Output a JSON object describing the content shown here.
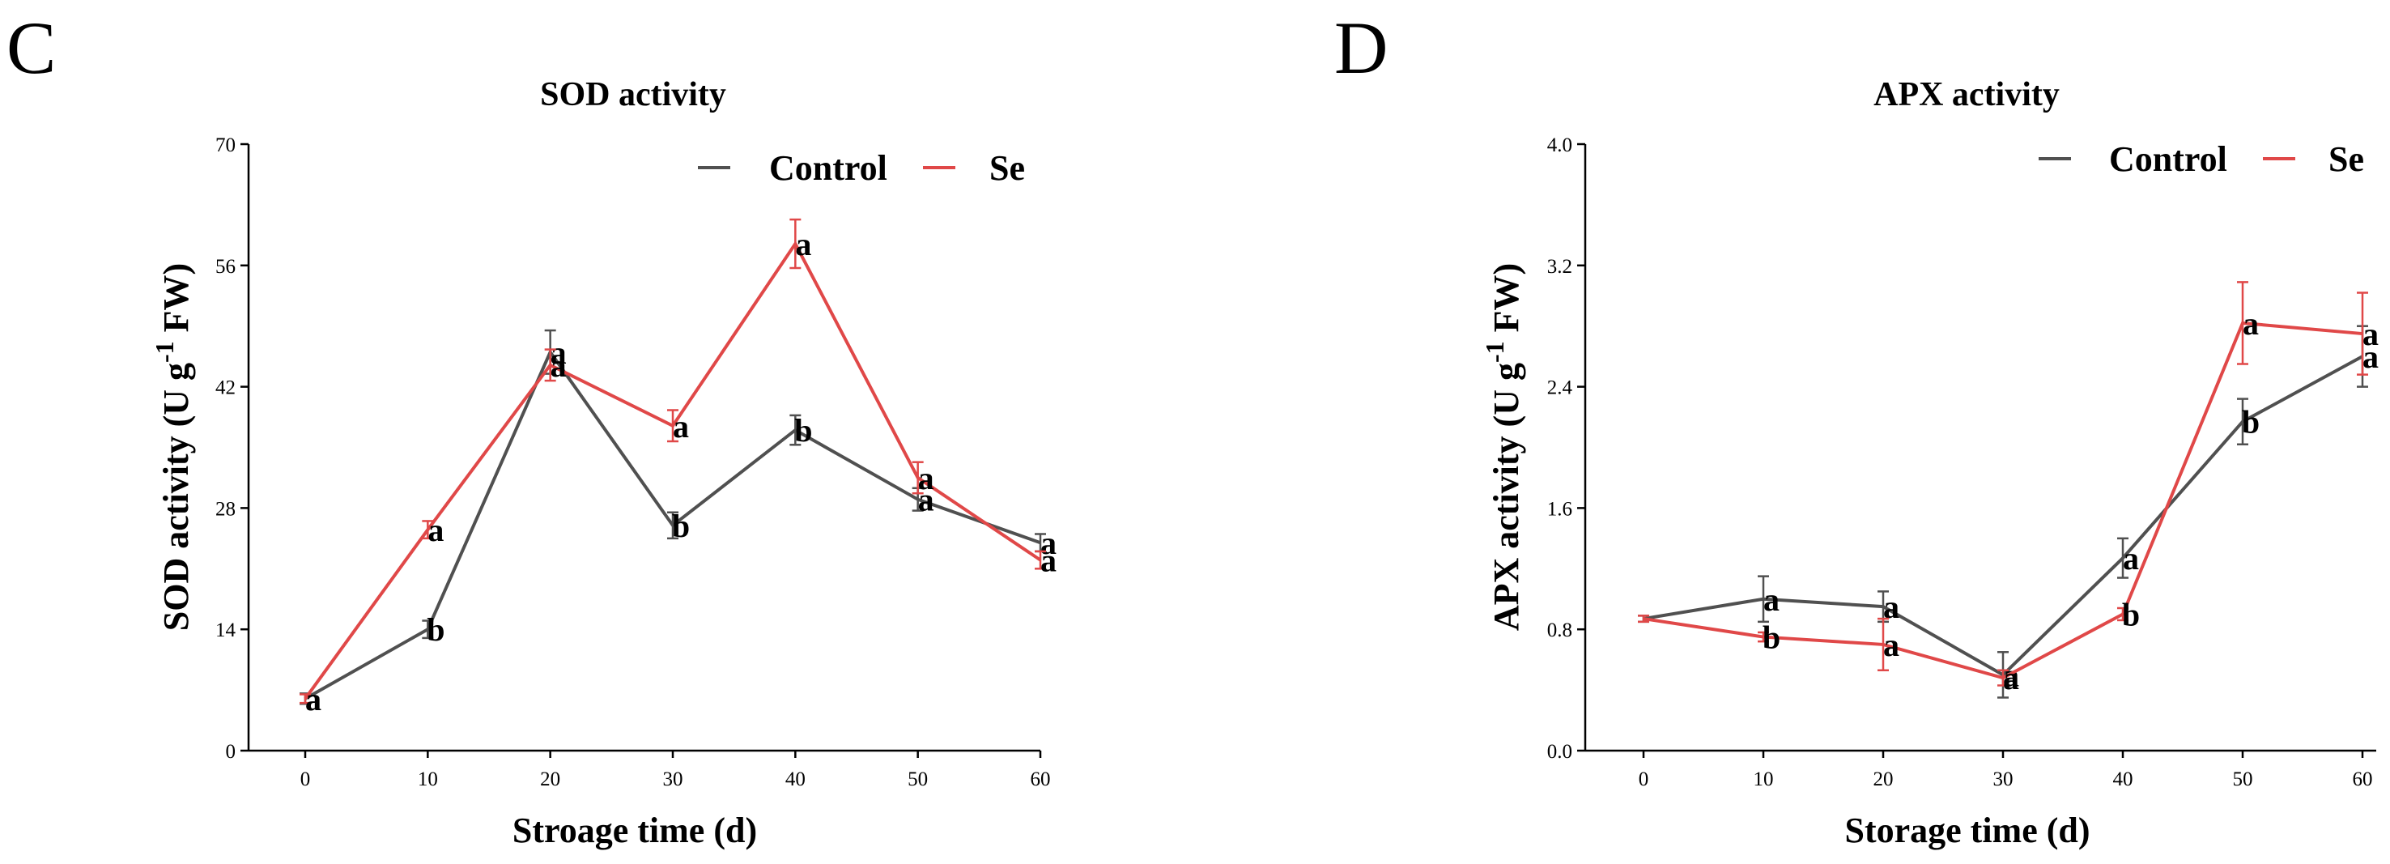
{
  "chart_data": [
    {
      "type": "line",
      "panel": "C",
      "title": "SOD activity",
      "xlabel": "Stroage time (d)",
      "ylabel": "SOD activity (U g",
      "ylabel_sup": "-1",
      "ylabel_tail": " FW)",
      "x": [
        0,
        10,
        20,
        30,
        40,
        50,
        60
      ],
      "xticks": [
        "0",
        "10",
        "20",
        "30",
        "40",
        "50",
        "60"
      ],
      "yticks": [
        "0",
        "14",
        "28",
        "42",
        "56",
        "70"
      ],
      "ytick_values": [
        0,
        14,
        28,
        42,
        56,
        70
      ],
      "xlim": [
        0,
        60
      ],
      "ylim": [
        0,
        70
      ],
      "legend": "top-right",
      "series": [
        {
          "name": "Control",
          "color": "#505050",
          "values": [
            6,
            14,
            46,
            26,
            37,
            29,
            24
          ],
          "errors": [
            0.6,
            1,
            2.5,
            1.5,
            1.7,
            1.3,
            1
          ],
          "labels": [
            "a",
            "b",
            "a",
            "b",
            "b",
            "a",
            "a"
          ]
        },
        {
          "name": "Se",
          "color": "#e04848",
          "values": [
            6,
            25.5,
            44.5,
            37.5,
            58.5,
            31.5,
            22
          ],
          "errors": [
            0.5,
            1,
            1.8,
            1.8,
            2.8,
            1.8,
            1
          ],
          "labels": [
            "a",
            "a",
            "a",
            "a",
            "a",
            "a",
            "a"
          ]
        }
      ]
    },
    {
      "type": "line",
      "panel": "D",
      "title": "APX activity",
      "xlabel": "Storage time (d)",
      "ylabel": "APX activity (U g",
      "ylabel_sup": "-1",
      "ylabel_tail": " FW)",
      "x": [
        0,
        10,
        20,
        30,
        40,
        50,
        60
      ],
      "xticks": [
        "0",
        "10",
        "20",
        "30",
        "40",
        "50",
        "60"
      ],
      "yticks": [
        "0.0",
        "0.8",
        "1.6",
        "2.4",
        "3.2",
        "4.0"
      ],
      "ytick_values": [
        0,
        0.8,
        1.6,
        2.4,
        3.2,
        4.0
      ],
      "xlim": [
        0,
        60
      ],
      "ylim": [
        0,
        4.0
      ],
      "legend": "top-right",
      "series": [
        {
          "name": "Control",
          "color": "#505050",
          "values": [
            0.87,
            1.0,
            0.95,
            0.5,
            1.27,
            2.17,
            2.6
          ],
          "errors": [
            0.02,
            0.15,
            0.1,
            0.15,
            0.13,
            0.15,
            0.2
          ],
          "labels": [
            "",
            "a",
            "a",
            "a",
            "a",
            "b",
            "a"
          ]
        },
        {
          "name": "Se",
          "color": "#e04848",
          "values": [
            0.87,
            0.75,
            0.7,
            0.48,
            0.9,
            2.82,
            2.75
          ],
          "errors": [
            0.02,
            0.03,
            0.17,
            0.05,
            0.04,
            0.27,
            0.27
          ],
          "labels": [
            "",
            "b",
            "a",
            "a",
            "b",
            "a",
            "a"
          ]
        }
      ]
    }
  ]
}
